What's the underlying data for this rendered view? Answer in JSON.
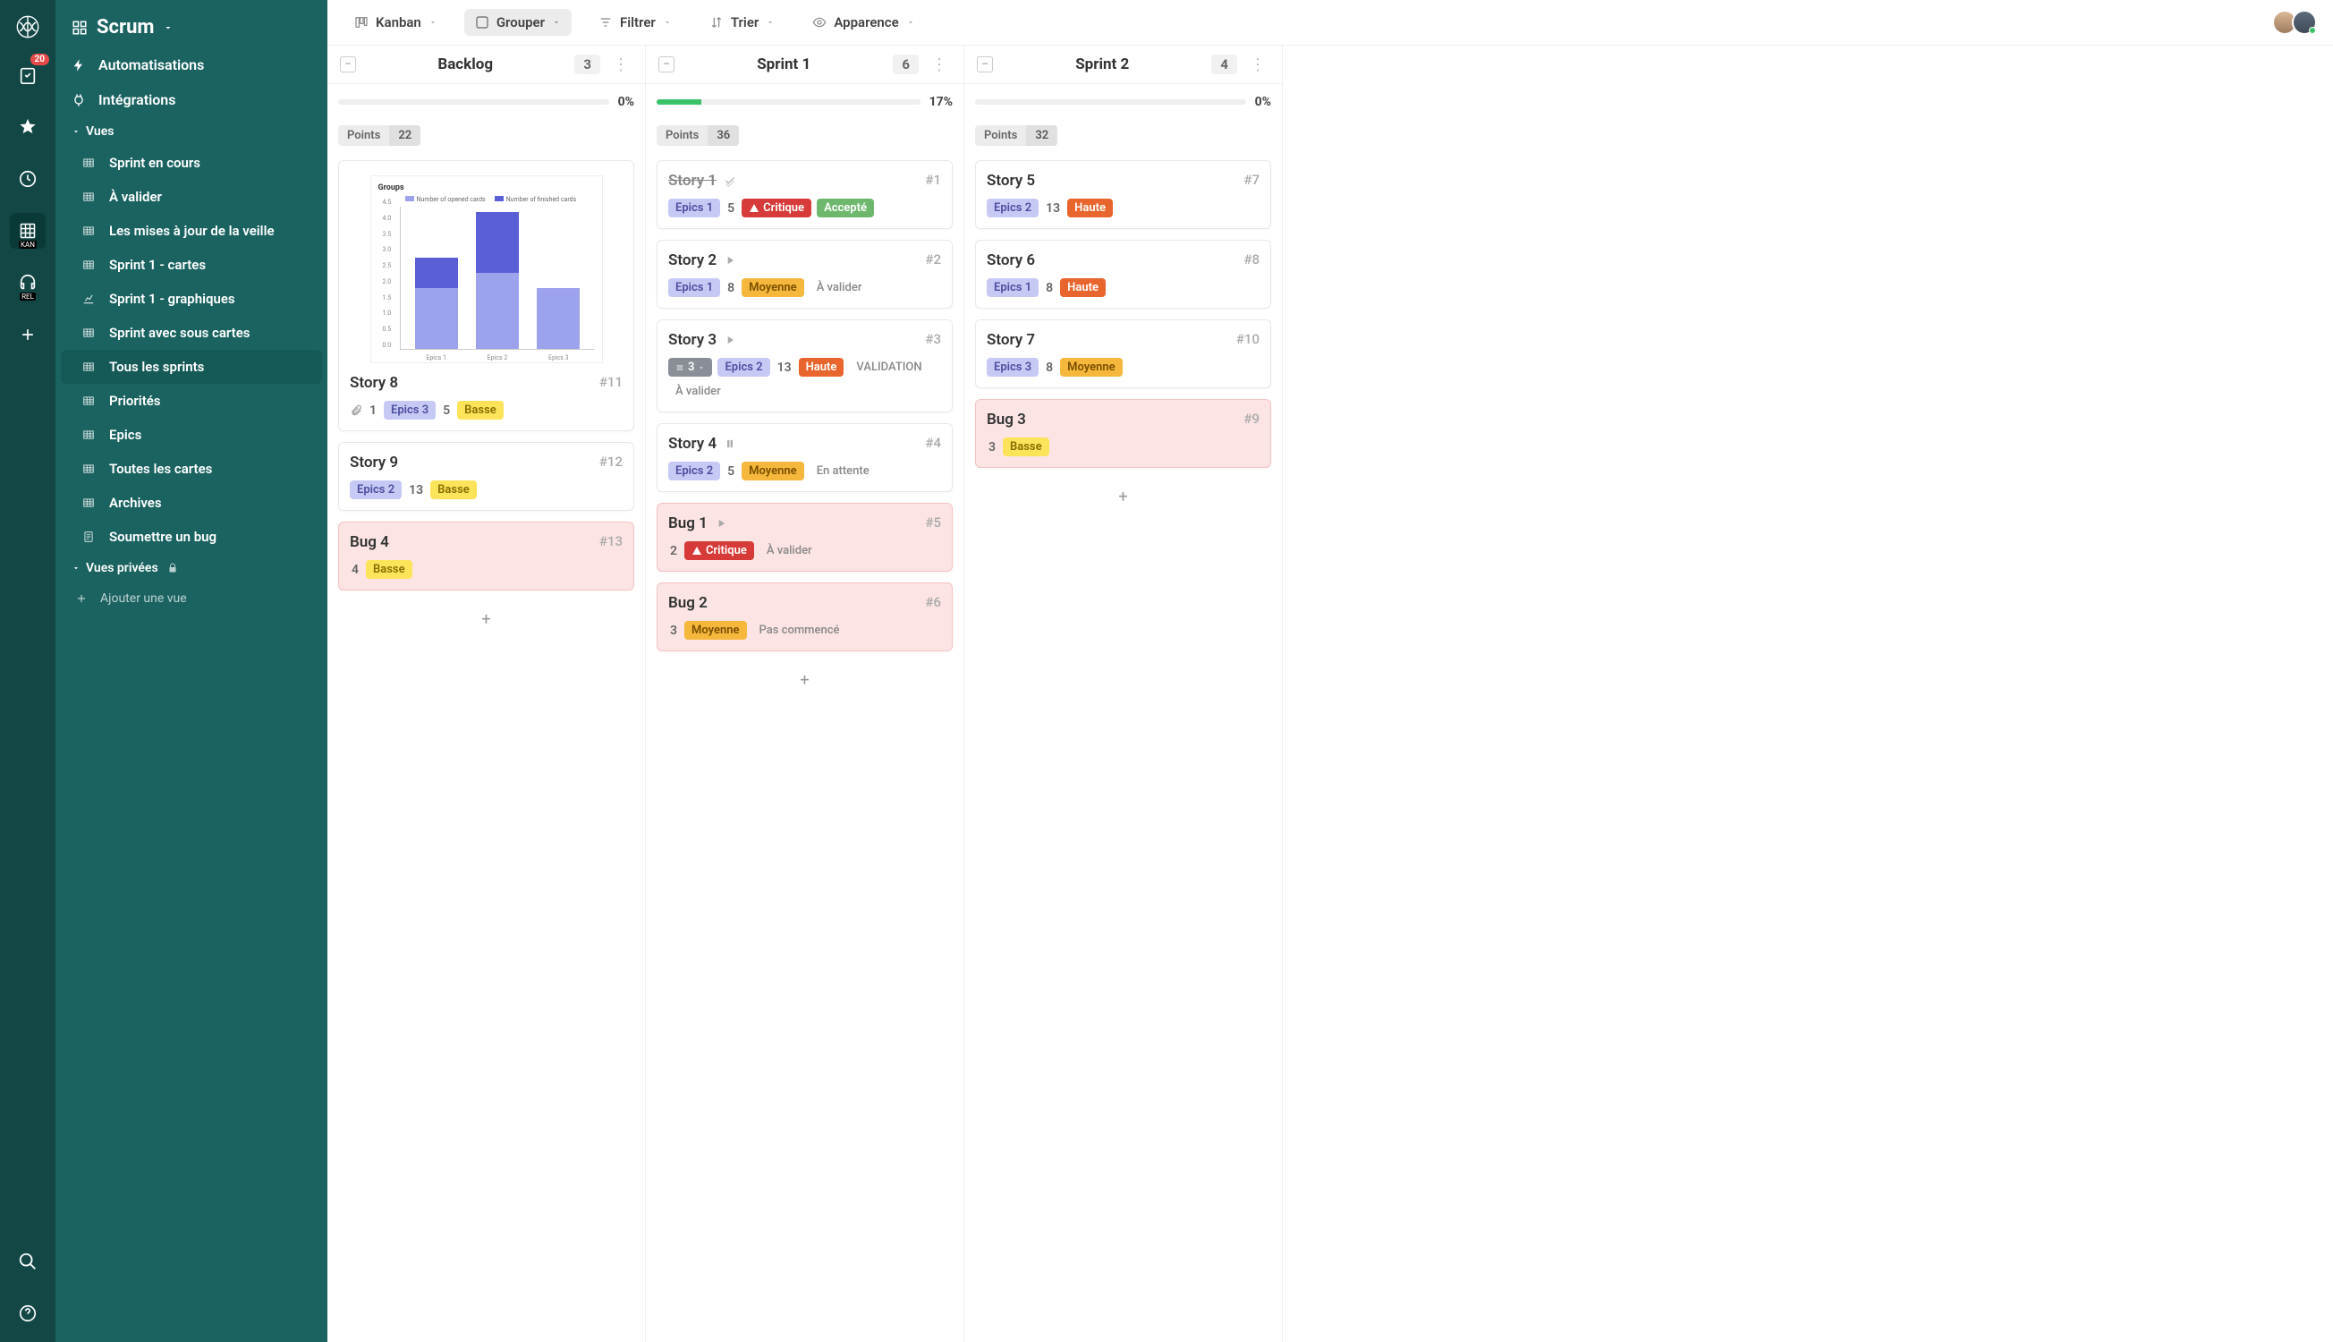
{
  "app": {
    "title": "Scrum"
  },
  "rail": {
    "badge_count": "20",
    "active_sublabel": "KAN",
    "rel_sublabel": "REL"
  },
  "sidebar": {
    "automations": "Automatisations",
    "integrations": "Intégrations",
    "views_label": "Vues",
    "views": [
      {
        "label": "Sprint en cours"
      },
      {
        "label": "À valider"
      },
      {
        "label": "Les mises à jour de la veille"
      },
      {
        "label": "Sprint 1 - cartes"
      },
      {
        "label": "Sprint 1 - graphiques"
      },
      {
        "label": "Sprint avec sous cartes"
      },
      {
        "label": "Tous les sprints"
      },
      {
        "label": "Priorités"
      },
      {
        "label": "Epics"
      },
      {
        "label": "Toutes les cartes"
      },
      {
        "label": "Archives"
      },
      {
        "label": "Soumettre un bug"
      }
    ],
    "active_view_index": 6,
    "private_views_label": "Vues privées",
    "add_view": "Ajouter une vue"
  },
  "toolbar": {
    "kanban": "Kanban",
    "group": "Grouper",
    "filter": "Filtrer",
    "sort": "Trier",
    "appearance": "Apparence"
  },
  "columns": [
    {
      "title": "Backlog",
      "count": "3",
      "progress_pct": 0,
      "progress_label": "0%",
      "points_label": "Points",
      "points_value": "22",
      "cards": [
        {
          "type": "story-chart",
          "title": "Story 8",
          "num": "#11",
          "chart": {
            "title": "Groups",
            "legend": [
              {
                "label": "Number of opened cards",
                "color": "#9da2ed"
              },
              {
                "label": "Number of finished cards",
                "color": "#5b5fd6"
              }
            ],
            "y_ticks": [
              "0.0",
              "0.5",
              "1.0",
              "1.5",
              "2.0",
              "2.5",
              "3.0",
              "3.5",
              "4.0",
              "4.5"
            ],
            "bars": [
              {
                "label": "Epics 1",
                "seg1_h": 68,
                "seg2_h": 34
              },
              {
                "label": "Epics 2",
                "seg1_h": 85,
                "seg2_h": 68
              },
              {
                "label": "Epics 3",
                "seg1_h": 68,
                "seg2_h": 0
              }
            ]
          },
          "meta": [
            {
              "kind": "attach"
            },
            {
              "kind": "points",
              "val": "1"
            },
            {
              "kind": "epic",
              "val": "Epics 3"
            },
            {
              "kind": "points",
              "val": "5"
            },
            {
              "kind": "priority",
              "class": "basse",
              "val": "Basse"
            }
          ]
        },
        {
          "type": "story",
          "title": "Story 9",
          "num": "#12",
          "meta": [
            {
              "kind": "epic",
              "val": "Epics 2"
            },
            {
              "kind": "points",
              "val": "13"
            },
            {
              "kind": "priority",
              "class": "basse",
              "val": "Basse"
            }
          ]
        },
        {
          "type": "bug",
          "title": "Bug 4",
          "num": "#13",
          "meta": [
            {
              "kind": "points",
              "val": "4"
            },
            {
              "kind": "priority",
              "class": "basse",
              "val": "Basse"
            }
          ]
        }
      ]
    },
    {
      "title": "Sprint 1",
      "count": "6",
      "progress_pct": 17,
      "progress_label": "17%",
      "points_label": "Points",
      "points_value": "36",
      "cards": [
        {
          "type": "story",
          "title": "Story 1",
          "num": "#1",
          "done": true,
          "meta": [
            {
              "kind": "epic",
              "val": "Epics 1"
            },
            {
              "kind": "points",
              "val": "5"
            },
            {
              "kind": "priority",
              "class": "critique",
              "val": "Critique",
              "warn": true
            },
            {
              "kind": "status",
              "class": "accepte",
              "val": "Accepté"
            }
          ]
        },
        {
          "type": "story",
          "title": "Story 2",
          "num": "#2",
          "icon": "play",
          "meta": [
            {
              "kind": "epic",
              "val": "Epics 1"
            },
            {
              "kind": "points",
              "val": "8"
            },
            {
              "kind": "priority",
              "class": "moyenne",
              "val": "Moyenne"
            },
            {
              "kind": "status",
              "class": "plain",
              "val": "À valider"
            }
          ]
        },
        {
          "type": "story",
          "title": "Story 3",
          "num": "#3",
          "icon": "play",
          "meta": [
            {
              "kind": "subtasks",
              "val": "3"
            },
            {
              "kind": "epic",
              "val": "Epics 2"
            },
            {
              "kind": "points",
              "val": "13"
            },
            {
              "kind": "priority",
              "class": "haute",
              "val": "Haute"
            },
            {
              "kind": "status",
              "class": "plain",
              "val": "VALIDATION"
            },
            {
              "kind": "status",
              "class": "plain",
              "val": "À valider"
            }
          ]
        },
        {
          "type": "story",
          "title": "Story 4",
          "num": "#4",
          "icon": "pause",
          "meta": [
            {
              "kind": "epic",
              "val": "Epics 2"
            },
            {
              "kind": "points",
              "val": "5"
            },
            {
              "kind": "priority",
              "class": "moyenne",
              "val": "Moyenne"
            },
            {
              "kind": "status",
              "class": "plain",
              "val": "En attente"
            }
          ]
        },
        {
          "type": "bug",
          "title": "Bug 1",
          "num": "#5",
          "icon": "play",
          "meta": [
            {
              "kind": "points",
              "val": "2"
            },
            {
              "kind": "priority",
              "class": "critique",
              "val": "Critique",
              "warn": true
            },
            {
              "kind": "status",
              "class": "plain",
              "val": "À valider"
            }
          ]
        },
        {
          "type": "bug",
          "title": "Bug 2",
          "num": "#6",
          "meta": [
            {
              "kind": "points",
              "val": "3"
            },
            {
              "kind": "priority",
              "class": "moyenne",
              "val": "Moyenne"
            },
            {
              "kind": "status",
              "class": "plain",
              "val": "Pas commencé"
            }
          ]
        }
      ]
    },
    {
      "title": "Sprint 2",
      "count": "4",
      "progress_pct": 0,
      "progress_label": "0%",
      "points_label": "Points",
      "points_value": "32",
      "cards": [
        {
          "type": "story",
          "title": "Story 5",
          "num": "#7",
          "meta": [
            {
              "kind": "epic",
              "val": "Epics 2"
            },
            {
              "kind": "points",
              "val": "13"
            },
            {
              "kind": "priority",
              "class": "haute",
              "val": "Haute"
            }
          ]
        },
        {
          "type": "story",
          "title": "Story 6",
          "num": "#8",
          "meta": [
            {
              "kind": "epic",
              "val": "Epics 1"
            },
            {
              "kind": "points",
              "val": "8"
            },
            {
              "kind": "priority",
              "class": "haute",
              "val": "Haute"
            }
          ]
        },
        {
          "type": "story",
          "title": "Story 7",
          "num": "#10",
          "meta": [
            {
              "kind": "epic",
              "val": "Epics 3"
            },
            {
              "kind": "points",
              "val": "8"
            },
            {
              "kind": "priority",
              "class": "moyenne",
              "val": "Moyenne"
            }
          ]
        },
        {
          "type": "bug",
          "title": "Bug 3",
          "num": "#9",
          "meta": [
            {
              "kind": "points",
              "val": "3"
            },
            {
              "kind": "priority",
              "class": "basse",
              "val": "Basse"
            }
          ]
        }
      ]
    }
  ]
}
